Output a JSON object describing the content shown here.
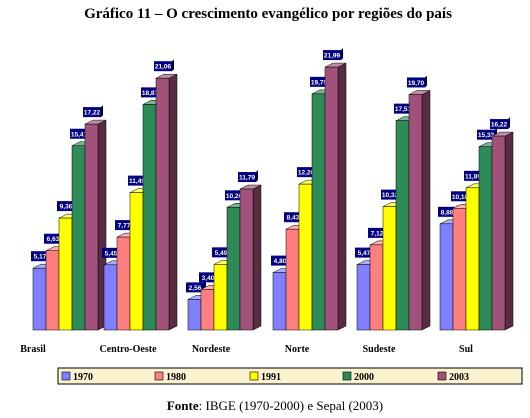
{
  "chart_data": {
    "type": "bar",
    "title": "Gráfico 11 – O crescimento evangélico por regiões do país",
    "categories": [
      "Brasil",
      "Centro-Oeste",
      "Nordeste",
      "Norte",
      "Sudeste",
      "Sul"
    ],
    "series": [
      {
        "name": "1970",
        "color": "#8080ff",
        "values": [
          5.17,
          5.45,
          2.56,
          4.8,
          5.47,
          8.88
        ],
        "labels": [
          "5,17",
          "5,45",
          "2,56",
          "4,80",
          "5,47",
          "8,88"
        ]
      },
      {
        "name": "1980",
        "color": "#ff7f7f",
        "values": [
          6.63,
          7.77,
          3.4,
          8.43,
          7.12,
          10.18
        ],
        "labels": [
          "6,63",
          "7,77",
          "3,40",
          "8,43",
          "7,12",
          "10,18"
        ]
      },
      {
        "name": "1991",
        "color": "#ffff00",
        "values": [
          9.36,
          11.49,
          5.49,
          12.2,
          10.32,
          11.89
        ],
        "labels": [
          "9,36",
          "11,49",
          "5,49",
          "12,20",
          "10,32",
          "11,89"
        ]
      },
      {
        "name": "2000",
        "color": "#2e8b57",
        "values": [
          15.41,
          18.87,
          10.26,
          19.75,
          17.51,
          15.33
        ],
        "labels": [
          "15,41",
          "18,87",
          "10,26",
          "19,75",
          "17,51",
          "15,33"
        ]
      },
      {
        "name": "2003",
        "color": "#a0527a",
        "values": [
          17.22,
          21.06,
          11.79,
          21.99,
          19.7,
          16.22
        ],
        "labels": [
          "17,22",
          "21,06",
          "11,79",
          "21,99",
          "19,70",
          "16,22"
        ]
      }
    ],
    "ylim": [
      0,
      23
    ],
    "grid": false,
    "legend_position": "bottom"
  },
  "source": {
    "label": "Fonte",
    "text": ": IBGE (1970-2000) e Sepal (2003)"
  }
}
